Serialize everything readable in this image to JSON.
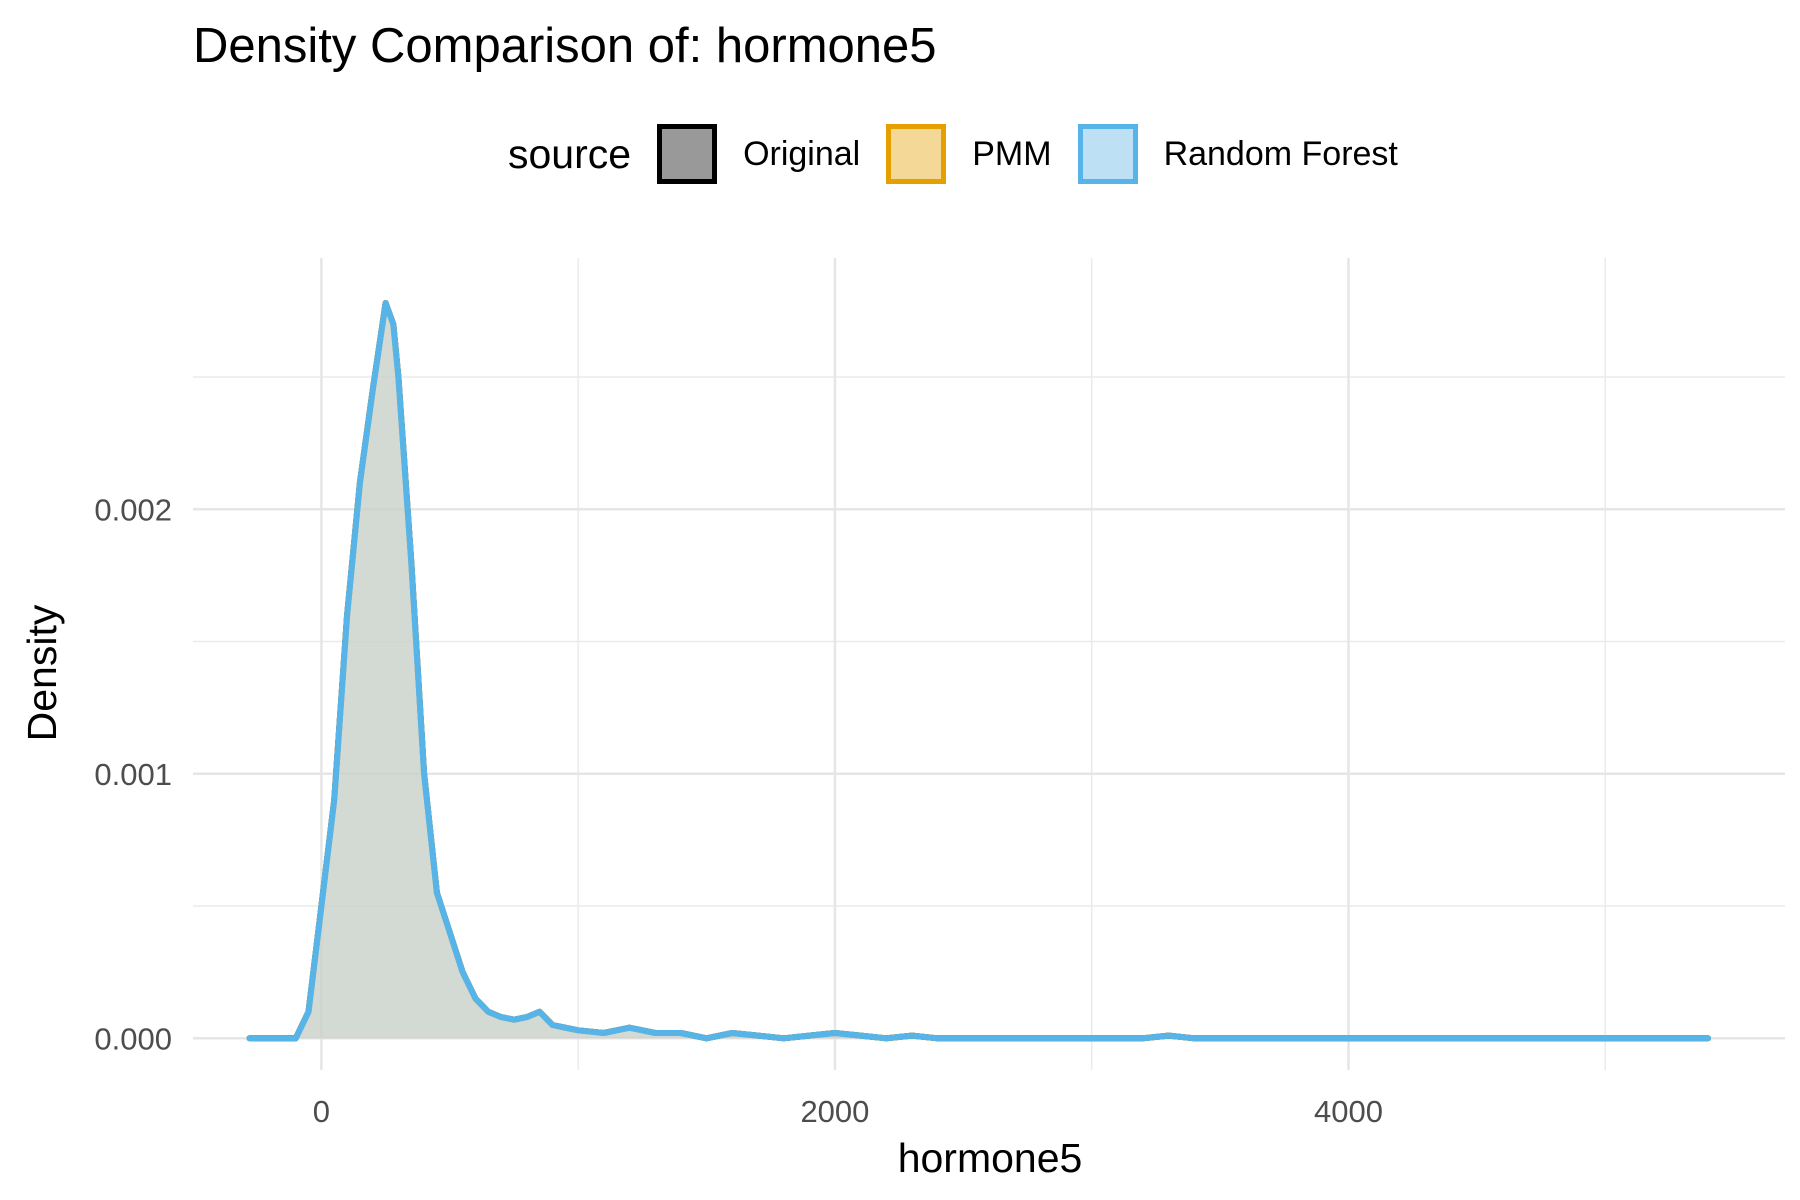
{
  "title": "Density Comparison of: hormone5",
  "legend": {
    "title": "source",
    "entries": [
      {
        "label": "Original",
        "fill": "#999999",
        "stroke": "#000000"
      },
      {
        "label": "PMM",
        "fill": "#f4d898",
        "stroke": "#e69f00"
      },
      {
        "label": "Random Forest",
        "fill": "#bde0f5",
        "stroke": "#56b4e9"
      }
    ]
  },
  "chart_data": {
    "type": "area",
    "xlabel": "hormone5",
    "ylabel": "Density",
    "xlim": [
      -500,
      5700
    ],
    "ylim": [
      -0.00012,
      0.00295
    ],
    "x_ticks": [
      0,
      2000,
      4000
    ],
    "x_tick_labels": [
      "0",
      "2000",
      "4000"
    ],
    "y_ticks": [
      0,
      0.001,
      0.002
    ],
    "y_tick_labels": [
      "0.000",
      "0.001",
      "0.002"
    ],
    "grid": true,
    "legend_position": "top",
    "series": [
      {
        "name": "Original",
        "fill": "#999999",
        "stroke": "#000000",
        "x": [
          -280,
          -100,
          -50,
          0,
          50,
          100,
          150,
          200,
          250,
          280,
          300,
          350,
          400,
          450,
          500,
          550,
          600,
          650,
          700,
          750,
          800,
          850,
          900,
          950,
          1000,
          1100,
          1200,
          1300,
          1400,
          1500,
          1600,
          1700,
          1800,
          1900,
          2000,
          2100,
          2200,
          2300,
          2400,
          2500,
          2600,
          2800,
          3000,
          3200,
          3300,
          3400,
          3600,
          4000,
          4500,
          5000,
          5400
        ],
        "y": [
          0,
          0,
          0.0001,
          0.0005,
          0.0009,
          0.0016,
          0.0021,
          0.00245,
          0.00278,
          0.0027,
          0.0025,
          0.0018,
          0.001,
          0.00055,
          0.0004,
          0.00025,
          0.00015,
          0.0001,
          8e-05,
          7e-05,
          8e-05,
          0.0001,
          5e-05,
          4e-05,
          3e-05,
          2e-05,
          4e-05,
          2e-05,
          2e-05,
          0.0,
          2e-05,
          1e-05,
          0.0,
          1e-05,
          2e-05,
          1e-05,
          0.0,
          1e-05,
          0.0,
          0.0,
          0.0,
          0.0,
          0.0,
          0.0,
          1e-05,
          0.0,
          0.0,
          0.0,
          0.0,
          0.0,
          0.0
        ]
      },
      {
        "name": "PMM",
        "fill": "#f4d898",
        "stroke": "#e69f00",
        "x": [
          -280,
          -100,
          -50,
          0,
          50,
          100,
          150,
          200,
          250,
          280,
          300,
          350,
          400,
          450,
          500,
          550,
          600,
          650,
          700,
          750,
          800,
          850,
          900,
          950,
          1000,
          1100,
          1200,
          1300,
          1400,
          1500,
          1600,
          1700,
          1800,
          1900,
          2000,
          2100,
          2200,
          2300,
          2400,
          2500,
          2600,
          2800,
          3000,
          3200,
          3300,
          3400,
          3600,
          4000,
          4500,
          5000,
          5400
        ],
        "y": [
          0,
          0,
          0.0001,
          0.0005,
          0.0009,
          0.0016,
          0.0021,
          0.00245,
          0.00278,
          0.0027,
          0.0025,
          0.0018,
          0.001,
          0.00055,
          0.0004,
          0.00025,
          0.00015,
          0.0001,
          8e-05,
          7e-05,
          8e-05,
          0.0001,
          5e-05,
          4e-05,
          3e-05,
          2e-05,
          4e-05,
          2e-05,
          2e-05,
          0.0,
          2e-05,
          1e-05,
          0.0,
          1e-05,
          2e-05,
          1e-05,
          0.0,
          1e-05,
          0.0,
          0.0,
          0.0,
          0.0,
          0.0,
          0.0,
          1e-05,
          0.0,
          0.0,
          0.0,
          0.0,
          0.0,
          0.0
        ]
      },
      {
        "name": "Random Forest",
        "fill": "#bde0f5",
        "stroke": "#56b4e9",
        "x": [
          -280,
          -100,
          -50,
          0,
          50,
          100,
          150,
          200,
          250,
          280,
          300,
          350,
          400,
          450,
          500,
          550,
          600,
          650,
          700,
          750,
          800,
          850,
          900,
          950,
          1000,
          1100,
          1200,
          1300,
          1400,
          1500,
          1600,
          1700,
          1800,
          1900,
          2000,
          2100,
          2200,
          2300,
          2400,
          2500,
          2600,
          2800,
          3000,
          3200,
          3300,
          3400,
          3600,
          4000,
          4500,
          5000,
          5400
        ],
        "y": [
          0,
          0,
          0.0001,
          0.0005,
          0.0009,
          0.0016,
          0.0021,
          0.00245,
          0.00278,
          0.0027,
          0.0025,
          0.0018,
          0.001,
          0.00055,
          0.0004,
          0.00025,
          0.00015,
          0.0001,
          8e-05,
          7e-05,
          8e-05,
          0.0001,
          5e-05,
          4e-05,
          3e-05,
          2e-05,
          4e-05,
          2e-05,
          2e-05,
          0.0,
          2e-05,
          1e-05,
          0.0,
          1e-05,
          2e-05,
          1e-05,
          0.0,
          1e-05,
          0.0,
          0.0,
          0.0,
          0.0,
          0.0,
          0.0,
          1e-05,
          0.0,
          0.0,
          0.0,
          0.0,
          0.0,
          0.0
        ]
      }
    ]
  }
}
